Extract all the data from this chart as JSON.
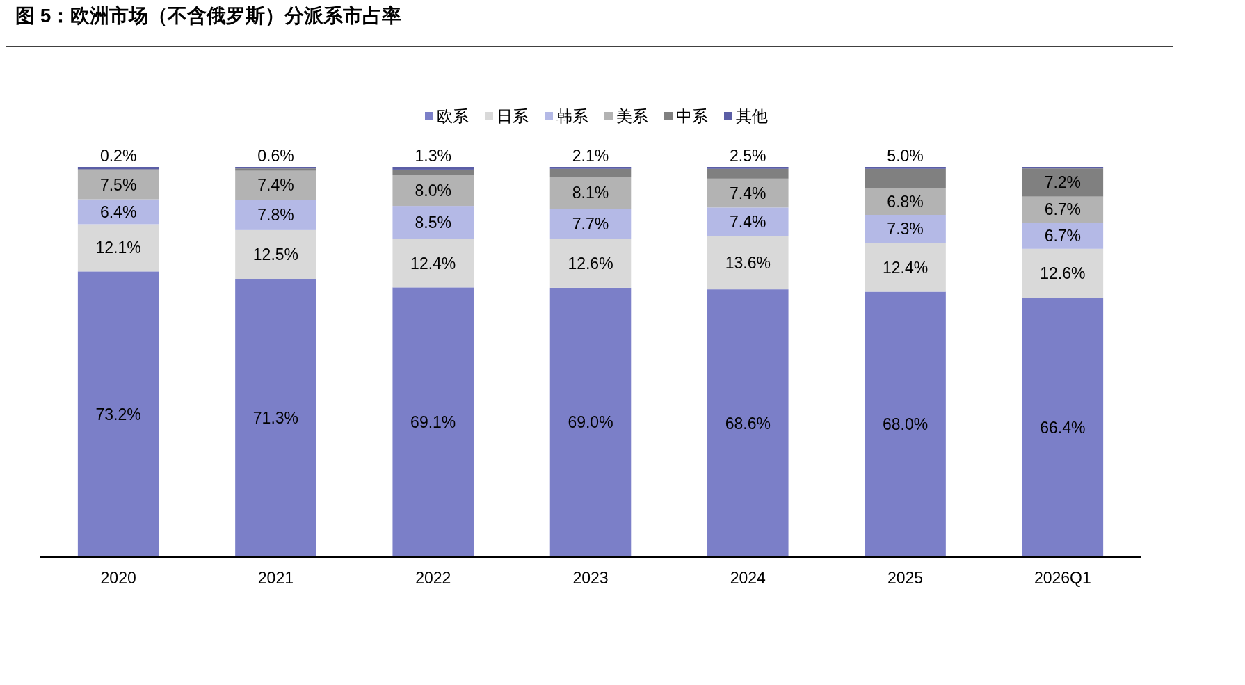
{
  "chart_data": {
    "type": "bar",
    "stacked": true,
    "title": "图 5：欧洲市场（不含俄罗斯）分派系市占率",
    "legend": "top",
    "ylim": [
      0,
      100
    ],
    "tick_labels": "x",
    "categories": [
      "2020",
      "2021",
      "2022",
      "2023",
      "2024",
      "2025",
      "2026Q1"
    ],
    "series": [
      {
        "name": "欧系",
        "color": "#7b7fc8",
        "values": [
          73.2,
          71.3,
          69.1,
          69.0,
          68.6,
          68.0,
          66.4
        ],
        "value_labels": [
          "73.2%",
          "71.3%",
          "69.1%",
          "69.0%",
          "68.6%",
          "68.0%",
          "66.4%"
        ]
      },
      {
        "name": "日系",
        "color": "#d9d9d9",
        "values": [
          12.1,
          12.5,
          12.4,
          12.6,
          13.6,
          12.4,
          12.6
        ],
        "value_labels": [
          "12.1%",
          "12.5%",
          "12.4%",
          "12.6%",
          "13.6%",
          "12.4%",
          "12.6%"
        ]
      },
      {
        "name": "韩系",
        "color": "#b4b9e6",
        "values": [
          6.4,
          7.8,
          8.5,
          7.7,
          7.4,
          7.3,
          6.7
        ],
        "value_labels": [
          "6.4%",
          "7.8%",
          "8.5%",
          "7.7%",
          "7.4%",
          "7.3%",
          "6.7%"
        ]
      },
      {
        "name": "美系",
        "color": "#b3b3b3",
        "values": [
          7.5,
          7.4,
          8.0,
          8.1,
          7.4,
          6.8,
          6.7
        ],
        "value_labels": [
          "7.5%",
          "7.4%",
          "8.0%",
          "8.1%",
          "7.4%",
          "6.8%",
          "6.7%"
        ]
      },
      {
        "name": "中系",
        "color": "#808080",
        "values": [
          0.2,
          0.6,
          1.3,
          2.1,
          2.5,
          5.0,
          7.2
        ],
        "value_labels": [
          "0.2%",
          "0.6%",
          "1.3%",
          "2.1%",
          "2.5%",
          "5.0%",
          "7.2%"
        ]
      },
      {
        "name": "其他",
        "color": "#5b5ea6",
        "values": [
          0.6,
          0.4,
          0.7,
          0.5,
          0.5,
          0.5,
          0.4
        ],
        "value_labels": [
          null,
          null,
          null,
          null,
          null,
          null,
          null
        ]
      }
    ]
  }
}
